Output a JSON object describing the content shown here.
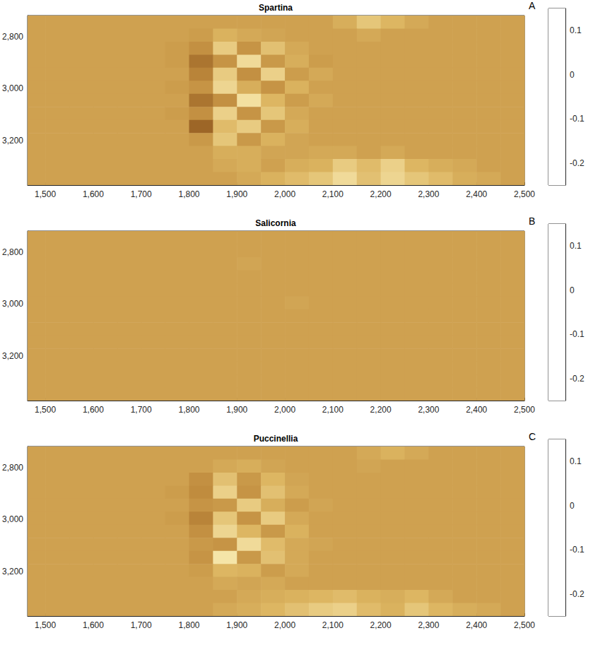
{
  "chart_data": [
    {
      "type": "heatmap",
      "title": "Spartina",
      "annotations": [
        "A"
      ],
      "xlim": [
        1463,
        2500
      ],
      "xticks": [
        1500,
        1600,
        1700,
        1800,
        1900,
        2000,
        2100,
        2200,
        2300,
        2400,
        2500
      ],
      "ylim": [
        2720,
        3370
      ],
      "yticks": [
        2800,
        3000,
        3200
      ],
      "grid": false,
      "x_edges": [
        1463,
        1500,
        1550,
        1600,
        1650,
        1700,
        1750,
        1800,
        1850,
        1900,
        1950,
        2000,
        2050,
        2100,
        2150,
        2200,
        2250,
        2300,
        2350,
        2400,
        2450,
        2500
      ],
      "y_edges": [
        2720,
        2770,
        2820,
        2870,
        2920,
        2970,
        3020,
        3070,
        3120,
        3170,
        3220,
        3270,
        3320,
        3370
      ],
      "cells": [
        [
          0,
          0,
          0,
          0,
          0,
          0,
          0,
          0,
          0,
          0,
          0,
          0,
          0,
          -0.03,
          -0.08,
          -0.05,
          -0.02,
          0,
          0,
          0,
          0
        ],
        [
          0,
          0,
          0,
          0,
          0,
          0,
          0,
          0.01,
          -0.04,
          -0.02,
          -0.01,
          0,
          0,
          0,
          -0.02,
          0,
          0,
          0,
          0,
          0,
          0
        ],
        [
          0,
          0,
          0,
          0,
          0,
          0,
          0.01,
          0.04,
          -0.09,
          0.03,
          -0.07,
          -0.02,
          0,
          0,
          0,
          0,
          0,
          0,
          0,
          0,
          0
        ],
        [
          0,
          0,
          0,
          0,
          0,
          0,
          0.01,
          0.08,
          0.03,
          -0.12,
          0.02,
          -0.03,
          0.01,
          0,
          0,
          0,
          0,
          0,
          0,
          0,
          0
        ],
        [
          0,
          0,
          0,
          0,
          0,
          0,
          0,
          0.06,
          -0.09,
          0.04,
          -0.1,
          0.01,
          -0.02,
          0,
          0,
          0,
          0,
          0,
          0,
          0,
          0
        ],
        [
          0,
          0,
          0,
          0,
          0,
          0,
          0.01,
          0.03,
          -0.11,
          -0.03,
          0.03,
          -0.04,
          0,
          0,
          0,
          0,
          0,
          0,
          0,
          0,
          0
        ],
        [
          0,
          0,
          0,
          0,
          0,
          0,
          0,
          0.08,
          0.04,
          -0.13,
          -0.05,
          0.01,
          -0.02,
          0,
          0,
          0,
          0,
          0,
          0,
          0,
          0
        ],
        [
          0,
          0,
          0,
          0,
          0,
          0,
          0.01,
          0.04,
          -0.1,
          0.03,
          -0.08,
          -0.02,
          0,
          0,
          0,
          0,
          0,
          0,
          0,
          0,
          0
        ],
        [
          0,
          0,
          0,
          0,
          0,
          0,
          0,
          0.1,
          -0.06,
          -0.09,
          0.02,
          -0.03,
          0,
          0,
          0,
          0,
          0,
          0,
          0,
          0,
          0
        ],
        [
          0,
          0,
          0,
          0,
          0,
          0,
          0,
          0.02,
          -0.08,
          0.02,
          -0.04,
          -0.01,
          0,
          0,
          0,
          0,
          0,
          0,
          0,
          0,
          0
        ],
        [
          0,
          0,
          0,
          0,
          0,
          0,
          0,
          0,
          -0.03,
          -0.03,
          -0.01,
          -0.01,
          -0.02,
          -0.02,
          0,
          -0.02,
          0,
          0,
          0,
          0,
          0
        ],
        [
          0,
          0,
          0,
          0,
          0,
          0,
          0,
          0,
          -0.02,
          -0.03,
          0,
          -0.03,
          -0.04,
          -0.09,
          -0.06,
          -0.1,
          -0.05,
          -0.03,
          -0.02,
          0,
          0
        ],
        [
          0,
          0,
          0,
          0,
          0,
          0,
          0,
          0,
          0,
          -0.02,
          -0.04,
          -0.06,
          -0.08,
          -0.12,
          -0.07,
          -0.11,
          -0.08,
          -0.06,
          -0.03,
          -0.02,
          0
        ]
      ],
      "colorbar": {
        "range": [
          -0.25,
          0.15
        ],
        "ticks": [
          0.1,
          0,
          -0.1,
          -0.2
        ]
      }
    },
    {
      "type": "heatmap",
      "title": "Salicornia",
      "annotations": [
        "B"
      ],
      "xlim": [
        1463,
        2500
      ],
      "xticks": [
        1500,
        1600,
        1700,
        1800,
        1900,
        2000,
        2100,
        2200,
        2300,
        2400,
        2500
      ],
      "ylim": [
        2720,
        3370
      ],
      "yticks": [
        2800,
        3000,
        3200
      ],
      "grid": false,
      "x_edges": [
        1463,
        1500,
        1550,
        1600,
        1650,
        1700,
        1750,
        1800,
        1850,
        1900,
        1950,
        2000,
        2050,
        2100,
        2150,
        2200,
        2250,
        2300,
        2350,
        2400,
        2450,
        2500
      ],
      "y_edges": [
        2720,
        2770,
        2820,
        2870,
        2920,
        2970,
        3020,
        3070,
        3120,
        3170,
        3220,
        3270,
        3320,
        3370
      ],
      "cells": [
        [
          0,
          0,
          0,
          0,
          0,
          0,
          0,
          0,
          0,
          0,
          0,
          0,
          0,
          0,
          0,
          0,
          0,
          0,
          0,
          0,
          0
        ],
        [
          0,
          0,
          0,
          0,
          0,
          0,
          0,
          0,
          0,
          0,
          0,
          0,
          0,
          0,
          0,
          0,
          0,
          0,
          0,
          0,
          0
        ],
        [
          0,
          0,
          0,
          0,
          0,
          0,
          0,
          0,
          0,
          -0.01,
          0,
          0,
          0,
          0,
          0,
          0,
          0,
          0,
          0,
          0,
          0
        ],
        [
          0,
          0,
          0,
          0,
          0,
          0,
          0,
          0,
          0,
          0,
          0,
          0,
          0,
          0,
          0,
          0,
          0,
          0,
          0,
          0,
          0
        ],
        [
          0,
          0,
          0,
          0,
          0,
          0,
          0,
          0,
          0,
          0,
          0,
          0,
          0,
          0,
          0,
          0,
          0,
          0,
          0,
          0,
          0
        ],
        [
          0,
          0,
          0,
          0,
          0,
          0,
          0,
          0,
          0,
          0,
          0,
          -0.01,
          0,
          0,
          0,
          0,
          0,
          0,
          0,
          0,
          0
        ],
        [
          0,
          0,
          0,
          0,
          0,
          0,
          0,
          0,
          0,
          0,
          0,
          0,
          0,
          0,
          0,
          0,
          0,
          0,
          0,
          0,
          0
        ],
        [
          0,
          0,
          0,
          0,
          0,
          0,
          0,
          0,
          0,
          0,
          0,
          0,
          0,
          0,
          0,
          0,
          0,
          0,
          0,
          0,
          0
        ],
        [
          0,
          0,
          0,
          0,
          0,
          0,
          0,
          0,
          0,
          0,
          0,
          0,
          0,
          0,
          0,
          0,
          0,
          0,
          0,
          0,
          0
        ],
        [
          0,
          0,
          0,
          0,
          0,
          0,
          0,
          0,
          0,
          0,
          0,
          0,
          0,
          0,
          0,
          0,
          0,
          0,
          0,
          0,
          0
        ],
        [
          0,
          0,
          0,
          0,
          0,
          0,
          0,
          0,
          0,
          0,
          0,
          0,
          0,
          0,
          0,
          0,
          0,
          0,
          0,
          0,
          0
        ],
        [
          0,
          0,
          0,
          0,
          0,
          0,
          0,
          0,
          0,
          0,
          0,
          0,
          0,
          0,
          0,
          0,
          0,
          0,
          0,
          0,
          0
        ],
        [
          0,
          0,
          0,
          0,
          0,
          0,
          0,
          0,
          0,
          0,
          0,
          0,
          0,
          0,
          0,
          0,
          0,
          0,
          0,
          0,
          0
        ]
      ],
      "colorbar": {
        "range": [
          -0.25,
          0.15
        ],
        "ticks": [
          0.1,
          0,
          -0.1,
          -0.2
        ]
      }
    },
    {
      "type": "heatmap",
      "title": "Puccinellia",
      "annotations": [
        "C"
      ],
      "xlim": [
        1463,
        2500
      ],
      "xticks": [
        1500,
        1600,
        1700,
        1800,
        1900,
        2000,
        2100,
        2200,
        2300,
        2400,
        2500
      ],
      "ylim": [
        2720,
        3370
      ],
      "yticks": [
        2800,
        3000,
        3200
      ],
      "grid": false,
      "x_edges": [
        1463,
        1500,
        1550,
        1600,
        1650,
        1700,
        1750,
        1800,
        1850,
        1900,
        1950,
        2000,
        2050,
        2100,
        2150,
        2200,
        2250,
        2300,
        2350,
        2400,
        2450,
        2500
      ],
      "y_edges": [
        2720,
        2770,
        2820,
        2870,
        2920,
        2970,
        3020,
        3070,
        3120,
        3170,
        3220,
        3270,
        3320,
        3370
      ],
      "cells": [
        [
          0,
          0,
          0,
          0,
          0,
          0,
          0,
          0,
          0,
          0,
          0,
          0,
          0,
          0,
          -0.02,
          -0.04,
          -0.02,
          0,
          0,
          0,
          0
        ],
        [
          0,
          0,
          0,
          0,
          0,
          0,
          0,
          0,
          -0.02,
          -0.03,
          -0.01,
          0,
          0,
          0,
          -0.01,
          0,
          0,
          0,
          0,
          0,
          0
        ],
        [
          0,
          0,
          0,
          0,
          0,
          0,
          0,
          0.04,
          -0.07,
          0.02,
          -0.05,
          -0.01,
          0,
          0,
          0,
          0,
          0,
          0,
          0,
          0,
          0
        ],
        [
          0,
          0,
          0,
          0,
          0,
          0,
          0.01,
          0.05,
          -0.1,
          0.03,
          -0.07,
          -0.02,
          0,
          0,
          0,
          0,
          0,
          0,
          0,
          0,
          0
        ],
        [
          0,
          0,
          0,
          0,
          0,
          0,
          0,
          0.03,
          0.02,
          -0.09,
          -0.03,
          0.01,
          -0.01,
          0,
          0,
          0,
          0,
          0,
          0,
          0,
          0
        ],
        [
          0,
          0,
          0,
          0,
          0,
          0,
          0.01,
          0.06,
          -0.08,
          0.03,
          -0.09,
          -0.02,
          0,
          0,
          0,
          0,
          0,
          0,
          0,
          0,
          0
        ],
        [
          0,
          0,
          0,
          0,
          0,
          0,
          0,
          0.04,
          -0.11,
          -0.05,
          0.02,
          -0.04,
          0,
          0,
          0,
          0,
          0,
          0,
          0,
          0,
          0
        ],
        [
          0,
          0,
          0,
          0,
          0,
          0,
          0,
          0.02,
          0.03,
          -0.12,
          -0.06,
          -0.02,
          -0.01,
          0,
          0,
          0,
          0,
          0,
          0,
          0,
          0
        ],
        [
          0,
          0,
          0,
          0,
          0,
          0,
          0,
          0.03,
          -0.14,
          0.02,
          -0.07,
          -0.02,
          0,
          0,
          0,
          0,
          0,
          0,
          0,
          0,
          0
        ],
        [
          0,
          0,
          0,
          0,
          0,
          0,
          0,
          0.01,
          -0.05,
          -0.04,
          0.01,
          -0.02,
          0,
          0,
          0,
          0,
          0,
          0,
          0,
          0,
          0
        ],
        [
          0,
          0,
          0,
          0,
          0,
          0,
          0,
          0,
          -0.02,
          -0.01,
          -0.02,
          0,
          0,
          0,
          0,
          0,
          0,
          0,
          0,
          0,
          0
        ],
        [
          0,
          0,
          0,
          0,
          0,
          0,
          0,
          0,
          0,
          -0.02,
          -0.03,
          -0.04,
          -0.05,
          -0.06,
          -0.04,
          -0.03,
          -0.05,
          -0.02,
          0,
          0,
          0
        ],
        [
          0,
          0,
          0,
          0,
          0,
          0,
          0,
          0,
          -0.02,
          -0.03,
          -0.05,
          -0.07,
          -0.09,
          -0.1,
          -0.06,
          -0.04,
          -0.08,
          -0.05,
          -0.03,
          -0.02,
          0
        ]
      ],
      "colorbar": {
        "range": [
          -0.25,
          0.15
        ],
        "ticks": [
          0.1,
          0,
          -0.1,
          -0.2
        ]
      }
    }
  ]
}
